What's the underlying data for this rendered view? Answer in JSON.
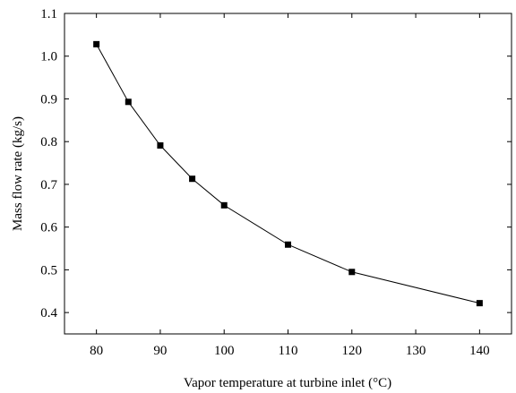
{
  "chart_data": {
    "type": "line",
    "xlabel": "Vapor temperature at turbine inlet (°C)",
    "ylabel": "Mass flow rate (kg/s)",
    "xlim": [
      75,
      145
    ],
    "ylim": [
      0.35,
      1.1
    ],
    "xticks": [
      80,
      90,
      100,
      110,
      120,
      130,
      140
    ],
    "xtick_labels": [
      "80",
      "90",
      "100",
      "110",
      "120",
      "130",
      "140"
    ],
    "yticks": [
      0.4,
      0.5,
      0.6,
      0.7,
      0.8,
      0.9,
      1.0,
      1.1
    ],
    "ytick_labels": [
      "0.4",
      "0.5",
      "0.6",
      "0.7",
      "0.8",
      "0.9",
      "1.0",
      "1.1"
    ],
    "grid": false,
    "series": [
      {
        "marker": "square",
        "color": "#000000",
        "x": [
          80,
          85,
          90,
          95,
          100,
          110,
          120,
          140
        ],
        "y": [
          1.028,
          0.893,
          0.791,
          0.713,
          0.651,
          0.559,
          0.495,
          0.422
        ]
      }
    ]
  }
}
